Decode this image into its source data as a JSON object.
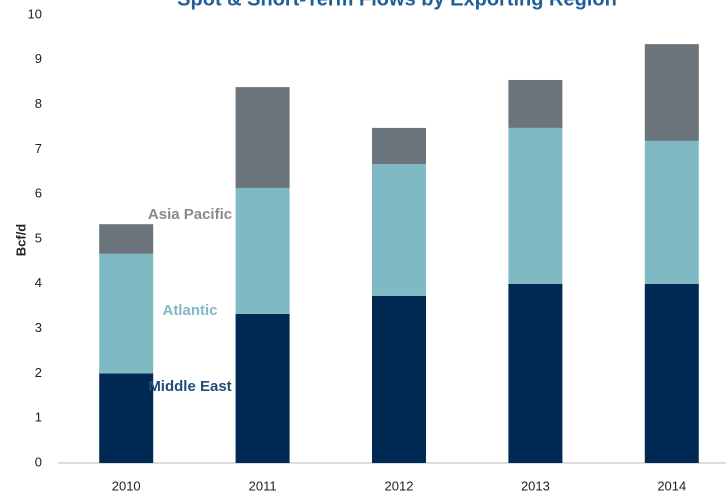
{
  "chart_data": {
    "type": "stacked_bar",
    "title": "Spot & Short-Term Flows by Exporting Region",
    "y_label": "Bcf/d",
    "categories": [
      "2010",
      "2011",
      "2012",
      "2013",
      "2014"
    ],
    "series": [
      {
        "name": "Middle East",
        "color": "#002a54",
        "label_color": "#1f4e79",
        "values": [
          2.0,
          3.33,
          3.73,
          4.0,
          4.0
        ]
      },
      {
        "name": "Atlantic",
        "color": "#7fbac4",
        "label_color": "#7fbac4",
        "values": [
          2.67,
          2.81,
          2.94,
          3.48,
          3.19
        ]
      },
      {
        "name": "Asia Pacific",
        "color": "#6b737b",
        "label_color": "#8a8a8a",
        "values": [
          0.66,
          2.25,
          0.81,
          1.07,
          2.16
        ]
      }
    ],
    "ylim": [
      0,
      10
    ],
    "yticks": [
      0,
      1,
      2,
      3,
      4,
      5,
      6,
      7,
      8,
      9,
      10
    ],
    "grid": false
  }
}
